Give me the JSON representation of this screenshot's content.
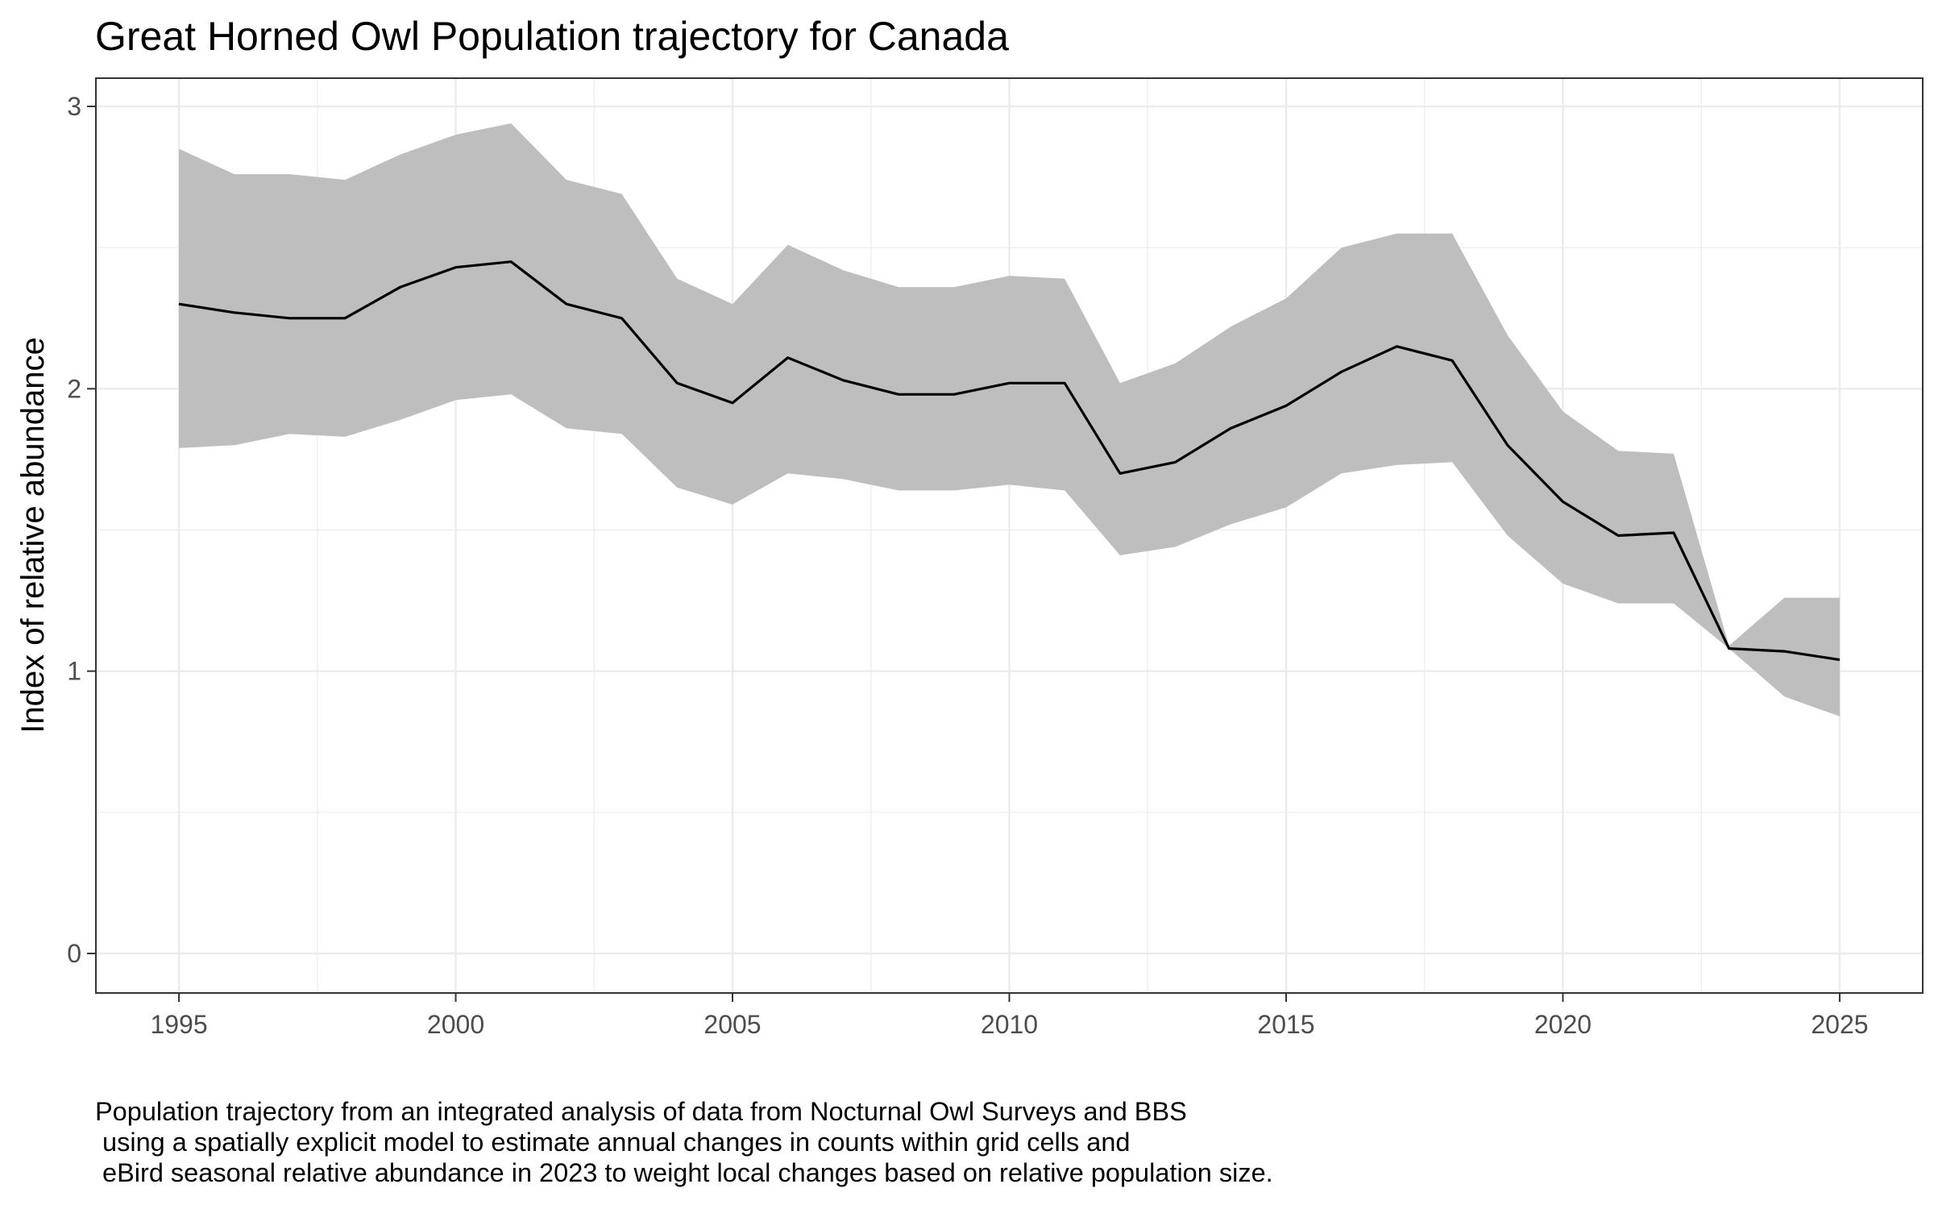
{
  "chart_data": {
    "type": "line",
    "title": "Great Horned Owl Population trajectory for Canada",
    "xlabel": "",
    "ylabel": "Index of relative abundance",
    "xlim": [
      1993.5,
      2026.5
    ],
    "ylim": [
      -0.14,
      3.1
    ],
    "x_ticks": [
      1995,
      2000,
      2005,
      2010,
      2015,
      2020,
      2025
    ],
    "y_ticks": [
      0,
      1,
      2,
      3
    ],
    "grid": true,
    "legend": "none",
    "line_color": "#000000",
    "band_color": "#bebebe",
    "series": [
      {
        "x": [
          1995,
          1996,
          1997,
          1998,
          1999,
          2000,
          2001,
          2002,
          2003,
          2004,
          2005,
          2006,
          2007,
          2008,
          2009,
          2010,
          2011,
          2012,
          2013,
          2014,
          2015,
          2016,
          2017,
          2018,
          2019,
          2020,
          2021,
          2022,
          2023,
          2024,
          2025
        ],
        "values": [
          2.3,
          2.27,
          2.25,
          2.25,
          2.36,
          2.43,
          2.45,
          2.3,
          2.25,
          2.02,
          1.95,
          2.11,
          2.03,
          1.98,
          1.98,
          2.02,
          2.02,
          1.7,
          1.74,
          1.86,
          1.94,
          2.06,
          2.15,
          2.1,
          1.8,
          1.6,
          1.48,
          1.49,
          1.08,
          1.07,
          1.04
        ],
        "lower": [
          1.79,
          1.8,
          1.84,
          1.83,
          1.89,
          1.96,
          1.98,
          1.86,
          1.84,
          1.65,
          1.59,
          1.7,
          1.68,
          1.64,
          1.64,
          1.66,
          1.64,
          1.41,
          1.44,
          1.52,
          1.58,
          1.7,
          1.73,
          1.74,
          1.48,
          1.31,
          1.24,
          1.24,
          1.08,
          0.91,
          0.84
        ],
        "upper": [
          2.85,
          2.76,
          2.76,
          2.74,
          2.83,
          2.9,
          2.94,
          2.74,
          2.69,
          2.39,
          2.3,
          2.51,
          2.42,
          2.36,
          2.36,
          2.4,
          2.39,
          2.02,
          2.09,
          2.22,
          2.32,
          2.5,
          2.55,
          2.55,
          2.19,
          1.92,
          1.78,
          1.77,
          1.09,
          1.26,
          1.26
        ]
      }
    ]
  },
  "caption": {
    "lines": [
      "Population trajectory from an integrated analysis of data from Nocturnal Owl Surveys and BBS",
      " using a spatially explicit model to estimate annual changes in counts within grid cells and",
      " eBird seasonal relative abundance in 2023 to weight local changes based on relative population size."
    ]
  }
}
